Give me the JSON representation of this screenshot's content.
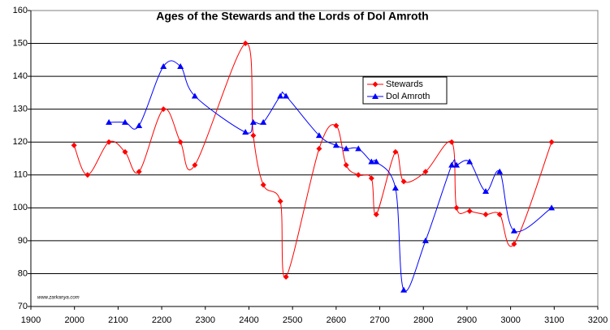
{
  "chart_data": {
    "type": "line",
    "title": "Ages of the Stewards and the Lords of Dol Amroth",
    "watermark": "www.zarkanya.com",
    "xlim": [
      1900,
      3200
    ],
    "xticks": [
      1900,
      2000,
      2100,
      2200,
      2300,
      2400,
      2500,
      2600,
      2700,
      2800,
      2900,
      3000,
      3100,
      3200
    ],
    "ylim": [
      70,
      160
    ],
    "yticks": [
      70,
      80,
      90,
      100,
      110,
      120,
      130,
      140,
      150,
      160
    ],
    "grid": true,
    "smooth": true,
    "legend": "upper right",
    "series": [
      {
        "name": "Stewards",
        "color": "#ff0000",
        "marker": "diamond",
        "x": [
          1999,
          2030,
          2079,
          2116,
          2148,
          2204,
          2243,
          2276,
          2392,
          2410,
          2433,
          2472,
          2485,
          2561,
          2600,
          2623,
          2651,
          2681,
          2692,
          2736,
          2755,
          2805,
          2865,
          2876,
          2906,
          2943,
          2975,
          3008,
          3094
        ],
        "values": [
          119,
          110,
          120,
          117,
          111,
          130,
          120,
          113,
          150,
          122,
          107,
          102,
          79,
          118,
          125,
          113,
          110,
          109,
          98,
          117,
          108,
          111,
          120,
          100,
          99,
          98,
          98,
          89,
          120
        ]
      },
      {
        "name": "Dol Amroth",
        "color": "#0000ff",
        "marker": "triangle",
        "x": [
          2079,
          2116,
          2148,
          2204,
          2243,
          2276,
          2392,
          2410,
          2433,
          2472,
          2485,
          2561,
          2600,
          2623,
          2651,
          2681,
          2692,
          2736,
          2755,
          2805,
          2865,
          2876,
          2906,
          2943,
          2975,
          3008,
          3094
        ],
        "values": [
          126,
          126,
          125,
          143,
          143,
          134,
          123,
          126,
          126,
          134,
          134,
          122,
          119,
          118,
          118,
          114,
          114,
          106,
          75,
          90,
          113,
          113,
          114,
          105,
          111,
          93,
          100
        ]
      }
    ]
  }
}
